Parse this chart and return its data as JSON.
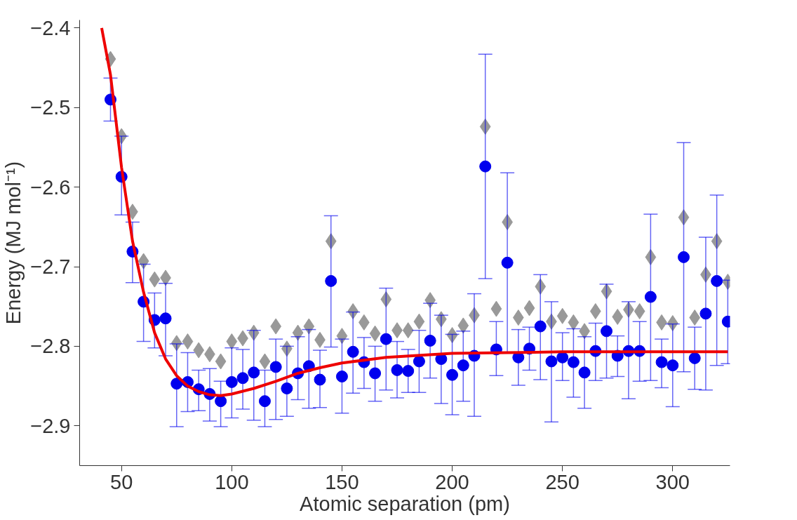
{
  "chart_data": {
    "type": "scatter",
    "xlabel": "Atomic separation (pm)",
    "ylabel": "Energy (MJ mol⁻¹)",
    "x": [
      45,
      50,
      55,
      60,
      65,
      70,
      75,
      80,
      85,
      90,
      95,
      100,
      105,
      110,
      115,
      120,
      125,
      130,
      135,
      140,
      145,
      150,
      155,
      160,
      165,
      170,
      175,
      180,
      185,
      190,
      195,
      200,
      205,
      210,
      215,
      220,
      225,
      230,
      235,
      240,
      245,
      250,
      255,
      260,
      265,
      270,
      275,
      280,
      285,
      290,
      295,
      300,
      305,
      310,
      315,
      320,
      325
    ],
    "xlim": [
      31,
      326
    ],
    "ylim": [
      -2.95,
      -2.39
    ],
    "xticks": [
      50,
      100,
      150,
      200,
      250,
      300
    ],
    "yticks": [
      {
        "value": -2.9,
        "label": "−2.9"
      },
      {
        "value": -2.8,
        "label": "−2.8"
      },
      {
        "value": -2.7,
        "label": "−2.7"
      },
      {
        "value": -2.6,
        "label": "−2.6"
      },
      {
        "value": -2.5,
        "label": "−2.5"
      },
      {
        "value": -2.4,
        "label": "−2.4"
      }
    ],
    "grid": false,
    "series": [
      {
        "type": "scatter",
        "marker": "diamond",
        "color": "#999999",
        "values": [
          -2.439,
          -2.536,
          -2.631,
          -2.693,
          -2.716,
          -2.714,
          -2.796,
          -2.794,
          -2.805,
          -2.81,
          -2.819,
          -2.794,
          -2.79,
          -2.783,
          -2.819,
          -2.775,
          -2.803,
          -2.783,
          -2.775,
          -2.792,
          -2.668,
          -2.787,
          -2.756,
          -2.77,
          -2.784,
          -2.741,
          -2.78,
          -2.78,
          -2.769,
          -2.742,
          -2.766,
          -2.786,
          -2.774,
          -2.761,
          -2.524,
          -2.753,
          -2.644,
          -2.764,
          -2.752,
          -2.725,
          -2.769,
          -2.762,
          -2.77,
          -2.781,
          -2.756,
          -2.731,
          -2.763,
          -2.754,
          -2.756,
          -2.688,
          -2.77,
          -2.771,
          -2.638,
          -2.764,
          -2.71,
          -2.668,
          -2.719
        ]
      },
      {
        "type": "scatter",
        "marker": "circle",
        "color": "#0000ee",
        "values": [
          -2.49,
          -2.587,
          -2.681,
          -2.744,
          -2.767,
          -2.765,
          -2.847,
          -2.845,
          -2.854,
          -2.86,
          -2.869,
          -2.845,
          -2.84,
          -2.833,
          -2.869,
          -2.826,
          -2.853,
          -2.834,
          -2.825,
          -2.842,
          -2.718,
          -2.838,
          -2.807,
          -2.82,
          -2.834,
          -2.791,
          -2.83,
          -2.831,
          -2.819,
          -2.793,
          -2.816,
          -2.836,
          -2.824,
          -2.812,
          -2.574,
          -2.804,
          -2.695,
          -2.814,
          -2.803,
          -2.775,
          -2.819,
          -2.814,
          -2.82,
          -2.833,
          -2.806,
          -2.781,
          -2.812,
          -2.806,
          -2.806,
          -2.738,
          -2.82,
          -2.824,
          -2.688,
          -2.815,
          -2.759,
          -2.718,
          -2.769
        ],
        "errors": [
          [
            -2.517,
            -2.463
          ],
          [
            -2.635,
            -2.536
          ],
          [
            -2.72,
            -2.644
          ],
          [
            -2.794,
            -2.697
          ],
          [
            -2.802,
            -2.733
          ],
          [
            -2.812,
            -2.721
          ],
          [
            -2.901,
            -2.797
          ],
          [
            -2.882,
            -2.808
          ],
          [
            -2.881,
            -2.83
          ],
          [
            -2.894,
            -2.828
          ],
          [
            -2.901,
            -2.844
          ],
          [
            -2.89,
            -2.802
          ],
          [
            -2.879,
            -2.804
          ],
          [
            -2.893,
            -2.78
          ],
          [
            -2.901,
            -2.83
          ],
          [
            -2.892,
            -2.791
          ],
          [
            -2.888,
            -2.8
          ],
          [
            -2.867,
            -2.788
          ],
          [
            -2.878,
            -2.779
          ],
          [
            -2.877,
            -2.805
          ],
          [
            -2.801,
            -2.636
          ],
          [
            -2.884,
            -2.791
          ],
          [
            -2.859,
            -2.757
          ],
          [
            -2.853,
            -2.789
          ],
          [
            -2.869,
            -2.8
          ],
          [
            -2.855,
            -2.727
          ],
          [
            -2.865,
            -2.794
          ],
          [
            -2.858,
            -2.804
          ],
          [
            -2.858,
            -2.78
          ],
          [
            -2.84,
            -2.746
          ],
          [
            -2.872,
            -2.761
          ],
          [
            -2.886,
            -2.785
          ],
          [
            -2.869,
            -2.781
          ],
          [
            -2.888,
            -2.734
          ],
          [
            -2.715,
            -2.433
          ],
          [
            -2.837,
            -2.769
          ],
          [
            -2.808,
            -2.582
          ],
          [
            -2.849,
            -2.779
          ],
          [
            -2.83,
            -2.776
          ],
          [
            -2.842,
            -2.71
          ],
          [
            -2.895,
            -2.744
          ],
          [
            -2.843,
            -2.783
          ],
          [
            -2.864,
            -2.778
          ],
          [
            -2.878,
            -2.788
          ],
          [
            -2.843,
            -2.771
          ],
          [
            -2.84,
            -2.722
          ],
          [
            -2.838,
            -2.787
          ],
          [
            -2.866,
            -2.744
          ],
          [
            -2.844,
            -2.769
          ],
          [
            -2.843,
            -2.634
          ],
          [
            -2.852,
            -2.791
          ],
          [
            -2.876,
            -2.772
          ],
          [
            -2.832,
            -2.544
          ],
          [
            -2.854,
            -2.776
          ],
          [
            -2.855,
            -2.663
          ],
          [
            -2.824,
            -2.61
          ],
          [
            -2.822,
            -2.717
          ]
        ]
      },
      {
        "type": "line",
        "color": "#ee0000",
        "line_style": "solid",
        "x": [
          41,
          45,
          50,
          55,
          60,
          65,
          70,
          75,
          80,
          85,
          90,
          95,
          100,
          110,
          120,
          130,
          140,
          150,
          170,
          200,
          250,
          325
        ],
        "values": [
          -2.4,
          -2.459,
          -2.575,
          -2.668,
          -2.732,
          -2.783,
          -2.816,
          -2.837,
          -2.85,
          -2.857,
          -2.861,
          -2.862,
          -2.86,
          -2.853,
          -2.844,
          -2.834,
          -2.827,
          -2.821,
          -2.814,
          -2.809,
          -2.807,
          -2.807
        ]
      }
    ]
  }
}
